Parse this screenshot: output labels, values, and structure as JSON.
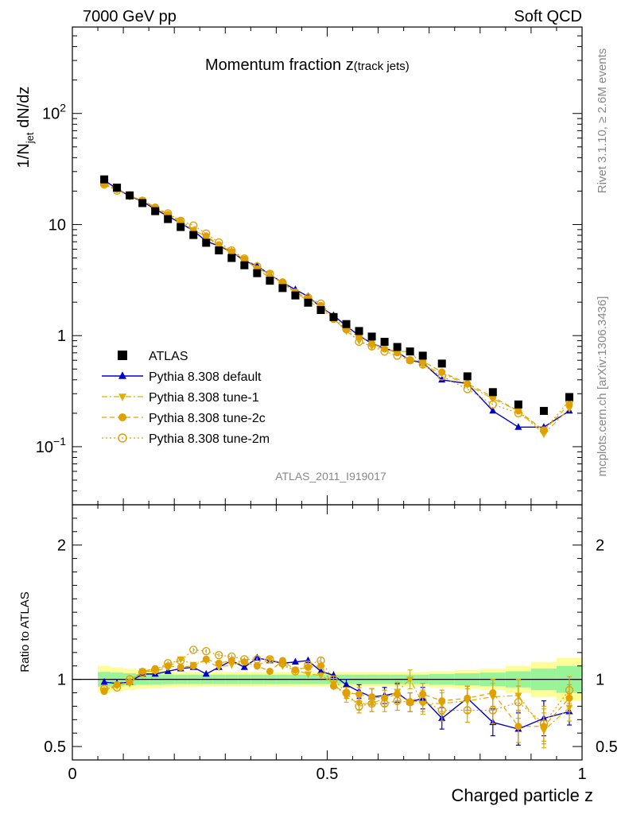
{
  "header": {
    "left": "7000 GeV pp",
    "right": "Soft QCD"
  },
  "labels": {
    "plot_title_main": "Momentum fraction ",
    "plot_title_z": "z",
    "plot_title_sub": "(track jets)",
    "analysis_id": "ATLAS_2011_I919017",
    "side_rivet": "Rivet 3.1.10, ≥ 2.6M events",
    "side_mcplots": "mcplots.cern.ch [arXiv:1306.3436]"
  },
  "chart_data": [
    {
      "type": "scatter",
      "panel": "main",
      "ylabel": "1/N_jet dN/dz",
      "ylabel_parts": {
        "pre": "1/N",
        "sub": "jet",
        "post": " dN/dz"
      },
      "xlabel": "",
      "y_scale": "log",
      "xlim": [
        0,
        1
      ],
      "ylim": [
        0.03,
        600
      ],
      "y_tick_labels": [
        {
          "value": 0.1,
          "base": "10",
          "exp": "−1"
        },
        {
          "value": 1,
          "text": "1"
        },
        {
          "value": 10,
          "text": "10"
        },
        {
          "value": 100,
          "base": "10",
          "exp": "2"
        }
      ],
      "legend_position": "lower-left",
      "x": [
        0.0625,
        0.0875,
        0.1125,
        0.1375,
        0.1625,
        0.1875,
        0.2125,
        0.2375,
        0.2625,
        0.2875,
        0.3125,
        0.3375,
        0.3625,
        0.3875,
        0.4125,
        0.4375,
        0.4625,
        0.4875,
        0.5125,
        0.5375,
        0.5625,
        0.5875,
        0.6125,
        0.6375,
        0.6625,
        0.6875,
        0.725,
        0.775,
        0.825,
        0.875,
        0.925,
        0.975
      ],
      "series": [
        {
          "name": "ATLAS",
          "marker": "square",
          "color": "#000000",
          "values": [
            25.5,
            21.5,
            18.3,
            15.6,
            13.2,
            11.2,
            9.5,
            8.05,
            6.85,
            5.85,
            5.0,
            4.3,
            3.65,
            3.12,
            2.68,
            2.3,
            1.98,
            1.7,
            1.47,
            1.27,
            1.1,
            0.98,
            0.88,
            0.79,
            0.72,
            0.66,
            0.56,
            0.43,
            0.31,
            0.24,
            0.21,
            0.28
          ]
        },
        {
          "name": "Pythia 8.308 default",
          "marker": "triangle-up",
          "line": "solid",
          "color": "#0000cc",
          "values": [
            25.0,
            21.0,
            18.0,
            16.2,
            13.7,
            11.9,
            10.3,
            8.8,
            7.1,
            6.4,
            5.7,
            4.7,
            4.25,
            3.55,
            3.0,
            2.6,
            2.25,
            1.8,
            1.52,
            1.22,
            1.0,
            0.85,
            0.77,
            0.71,
            0.6,
            0.57,
            0.4,
            0.37,
            0.21,
            0.15,
            0.15,
            0.21
          ]
        },
        {
          "name": "Pythia 8.308 tune-1",
          "marker": "triangle-down",
          "line": "dashdot",
          "color": "#e0b000",
          "values": [
            23.5,
            20.7,
            17.8,
            16.6,
            14.0,
            12.2,
            10.9,
            8.95,
            7.8,
            6.4,
            5.55,
            4.87,
            4.0,
            3.6,
            2.95,
            2.45,
            2.05,
            1.75,
            1.42,
            1.1,
            0.9,
            0.8,
            0.76,
            0.72,
            0.72,
            0.54,
            0.46,
            0.36,
            0.27,
            0.21,
            0.13,
            0.22
          ]
        },
        {
          "name": "Pythia 8.308 tune-2c",
          "marker": "circle",
          "line": "dashed",
          "color": "#e0a000",
          "values": [
            23.3,
            20.7,
            18.0,
            16.6,
            14.3,
            12.3,
            10.4,
            8.85,
            7.9,
            6.57,
            5.7,
            4.87,
            4.0,
            3.3,
            3.05,
            2.47,
            2.15,
            1.87,
            1.4,
            1.14,
            0.98,
            0.85,
            0.76,
            0.7,
            0.6,
            0.59,
            0.47,
            0.37,
            0.28,
            0.21,
            0.14,
            0.24
          ]
        },
        {
          "name": "Pythia 8.308 tune-2m",
          "marker": "circle-open",
          "line": "dotted",
          "color": "#e0a000",
          "values": [
            23.0,
            20.2,
            18.3,
            16.3,
            14.2,
            12.6,
            10.8,
            9.8,
            8.3,
            6.9,
            5.84,
            4.95,
            4.2,
            3.6,
            3.0,
            2.43,
            2.2,
            1.94,
            1.47,
            1.14,
            0.88,
            0.8,
            0.72,
            0.66,
            0.6,
            0.55,
            0.43,
            0.33,
            0.24,
            0.2,
            0.14,
            0.26
          ]
        }
      ]
    },
    {
      "type": "scatter",
      "panel": "ratio",
      "ylabel": "Ratio to ATLAS",
      "xlabel": "Charged particle z",
      "xlim": [
        0,
        1
      ],
      "ylim": [
        0.4,
        2.3
      ],
      "x_tick_labels": [
        {
          "value": 0,
          "text": "0"
        },
        {
          "value": 0.5,
          "text": "0.5"
        },
        {
          "value": 1,
          "text": "1"
        }
      ],
      "y_tick_labels": [
        {
          "value": 0.5,
          "text": "0.5"
        },
        {
          "value": 1,
          "text": "1"
        },
        {
          "value": 2,
          "text": "2"
        }
      ],
      "reference_line": 1,
      "band_colors": {
        "inner": "#99f399",
        "outer": "#fdfd9a"
      },
      "uncertainty_bands": {
        "x_edges": [
          0.05,
          0.075,
          0.1,
          0.125,
          0.15,
          0.175,
          0.2,
          0.225,
          0.25,
          0.275,
          0.3,
          0.325,
          0.35,
          0.375,
          0.4,
          0.425,
          0.45,
          0.475,
          0.5,
          0.525,
          0.55,
          0.575,
          0.6,
          0.625,
          0.65,
          0.675,
          0.7,
          0.75,
          0.8,
          0.85,
          0.9,
          0.95,
          1.0
        ],
        "inner_half_width": [
          0.055,
          0.05,
          0.045,
          0.04,
          0.038,
          0.036,
          0.035,
          0.035,
          0.035,
          0.035,
          0.035,
          0.035,
          0.035,
          0.035,
          0.035,
          0.035,
          0.035,
          0.035,
          0.035,
          0.035,
          0.035,
          0.035,
          0.035,
          0.035,
          0.035,
          0.035,
          0.04,
          0.045,
          0.05,
          0.06,
          0.08,
          0.1
        ],
        "outer_half_width": [
          0.1,
          0.09,
          0.08,
          0.07,
          0.065,
          0.06,
          0.058,
          0.057,
          0.055,
          0.055,
          0.055,
          0.055,
          0.055,
          0.055,
          0.055,
          0.055,
          0.055,
          0.055,
          0.055,
          0.055,
          0.055,
          0.055,
          0.055,
          0.055,
          0.055,
          0.055,
          0.06,
          0.07,
          0.08,
          0.1,
          0.13,
          0.16
        ]
      },
      "series": [
        {
          "name": "Pythia 8.308 default",
          "marker": "triangle-up",
          "line": "solid",
          "color": "#0000cc",
          "values": [
            0.98,
            0.97,
            0.98,
            1.04,
            1.04,
            1.06,
            1.08,
            1.09,
            1.04,
            1.09,
            1.14,
            1.09,
            1.16,
            1.14,
            1.12,
            1.13,
            1.14,
            1.06,
            1.03,
            0.96,
            0.91,
            0.87,
            0.88,
            0.9,
            0.83,
            0.86,
            0.71,
            0.86,
            0.68,
            0.63,
            0.71,
            0.76
          ],
          "err": [
            0.015,
            0.015,
            0.015,
            0.015,
            0.015,
            0.015,
            0.015,
            0.015,
            0.015,
            0.015,
            0.015,
            0.015,
            0.015,
            0.015,
            0.02,
            0.02,
            0.02,
            0.025,
            0.03,
            0.04,
            0.05,
            0.06,
            0.06,
            0.07,
            0.07,
            0.08,
            0.08,
            0.09,
            0.1,
            0.12,
            0.13,
            0.1
          ]
        },
        {
          "name": "Pythia 8.308 tune-1",
          "marker": "triangle-down",
          "line": "dashdot",
          "color": "#e0b000",
          "values": [
            0.92,
            0.96,
            0.97,
            1.06,
            1.06,
            1.09,
            1.15,
            1.11,
            1.14,
            1.09,
            1.11,
            1.13,
            1.1,
            1.15,
            1.1,
            1.07,
            1.04,
            1.03,
            0.97,
            0.87,
            0.82,
            0.82,
            0.86,
            0.91,
            1.0,
            0.82,
            0.82,
            0.84,
            0.87,
            0.88,
            0.62,
            0.79
          ],
          "err": [
            0.015,
            0.015,
            0.015,
            0.015,
            0.015,
            0.015,
            0.015,
            0.015,
            0.015,
            0.015,
            0.015,
            0.015,
            0.015,
            0.015,
            0.02,
            0.02,
            0.02,
            0.025,
            0.03,
            0.04,
            0.05,
            0.06,
            0.06,
            0.07,
            0.07,
            0.08,
            0.08,
            0.09,
            0.1,
            0.12,
            0.13,
            0.1
          ]
        },
        {
          "name": "Pythia 8.308 tune-2c",
          "marker": "circle",
          "line": "dashed",
          "color": "#e0a000",
          "values": [
            0.91,
            0.96,
            0.98,
            1.06,
            1.08,
            1.1,
            1.09,
            1.1,
            1.15,
            1.12,
            1.14,
            1.13,
            1.1,
            1.06,
            1.14,
            1.07,
            1.09,
            1.1,
            0.95,
            0.9,
            0.89,
            0.87,
            0.86,
            0.89,
            0.83,
            0.89,
            0.84,
            0.86,
            0.9,
            0.65,
            0.65,
            0.86
          ],
          "err": [
            0.015,
            0.015,
            0.015,
            0.015,
            0.015,
            0.015,
            0.015,
            0.015,
            0.015,
            0.015,
            0.015,
            0.015,
            0.015,
            0.015,
            0.02,
            0.02,
            0.02,
            0.025,
            0.03,
            0.04,
            0.05,
            0.06,
            0.06,
            0.07,
            0.07,
            0.08,
            0.08,
            0.09,
            0.1,
            0.12,
            0.13,
            0.1
          ]
        },
        {
          "name": "Pythia 8.308 tune-2m",
          "marker": "circle-open",
          "line": "dotted",
          "color": "#e0a000",
          "values": [
            0.93,
            0.94,
            1.0,
            1.05,
            1.07,
            1.12,
            1.14,
            1.22,
            1.21,
            1.18,
            1.17,
            1.15,
            1.15,
            1.15,
            1.12,
            1.06,
            1.11,
            1.14,
            1.0,
            0.9,
            0.8,
            0.82,
            0.82,
            0.84,
            0.83,
            0.84,
            0.77,
            0.77,
            0.77,
            0.83,
            0.67,
            0.92
          ],
          "err": [
            0.015,
            0.015,
            0.015,
            0.015,
            0.015,
            0.015,
            0.015,
            0.015,
            0.015,
            0.015,
            0.015,
            0.015,
            0.015,
            0.015,
            0.02,
            0.02,
            0.02,
            0.025,
            0.03,
            0.04,
            0.05,
            0.06,
            0.06,
            0.07,
            0.07,
            0.08,
            0.08,
            0.09,
            0.1,
            0.12,
            0.13,
            0.1
          ]
        }
      ]
    }
  ]
}
